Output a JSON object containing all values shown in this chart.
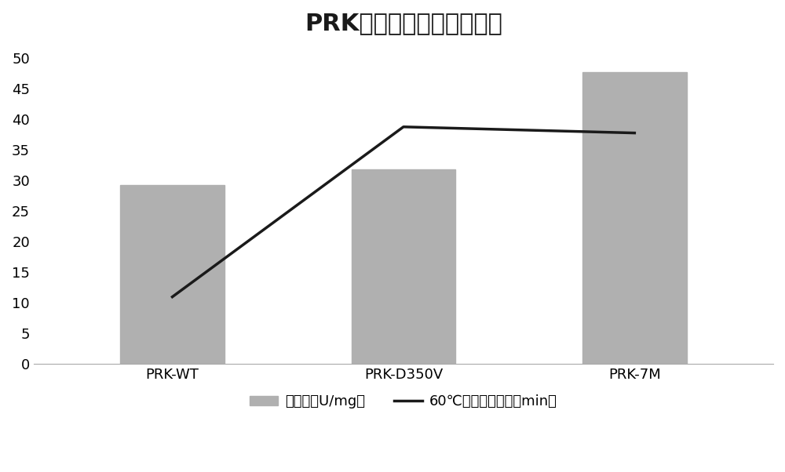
{
  "categories": [
    "PRK-WT",
    "PRK-D350V",
    "PRK-7M"
  ],
  "bar_values": [
    29.3,
    31.8,
    47.8
  ],
  "line_values": [
    11.0,
    38.8,
    37.8
  ],
  "bar_color": "#b0b0b0",
  "line_color": "#1a1a1a",
  "title": "PRK比活性和半衰期的比较",
  "ylim": [
    0,
    52
  ],
  "yticks": [
    0,
    5,
    10,
    15,
    20,
    25,
    30,
    35,
    40,
    45,
    50
  ],
  "legend_bar_label": "比活性（U/mg）",
  "legend_line_label": "60℃孵育的半衰期（min）",
  "title_fontsize": 22,
  "tick_fontsize": 13,
  "legend_fontsize": 13,
  "bar_width": 0.45,
  "background_color": "#ffffff"
}
